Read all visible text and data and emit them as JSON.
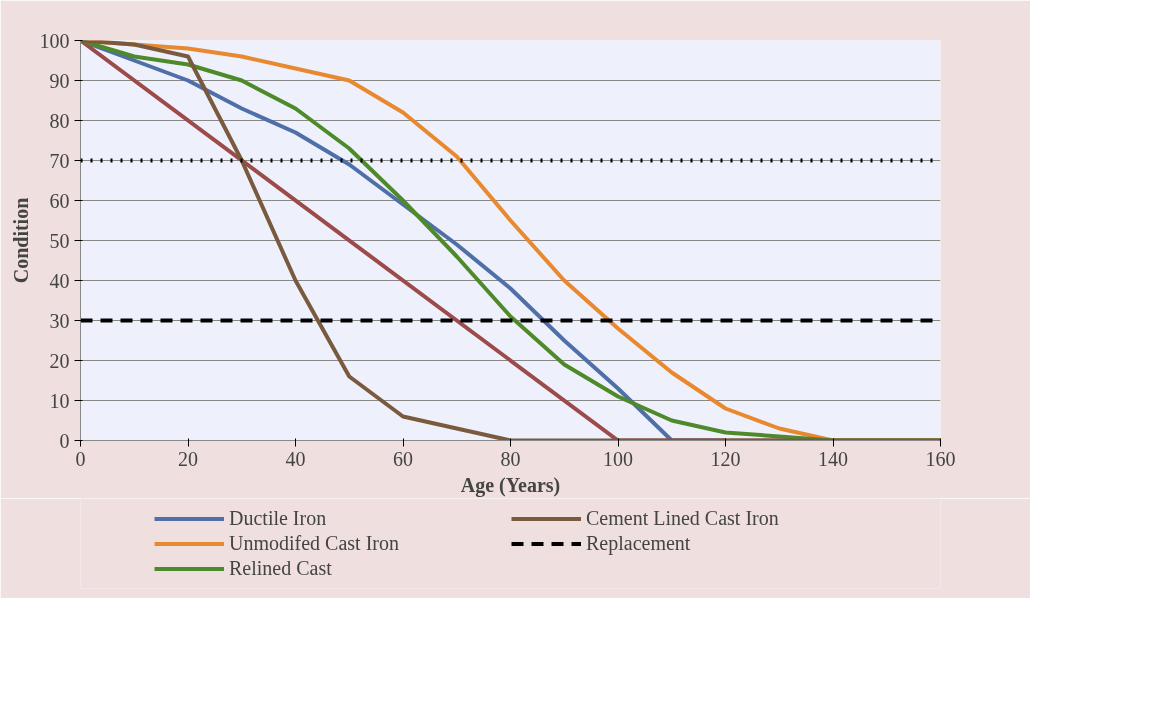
{
  "chart_data": {
    "type": "line",
    "xlabel": "Age (Years)",
    "ylabel": "Condition",
    "xlim": [
      0,
      160
    ],
    "xticks": [
      0,
      20,
      40,
      60,
      80,
      100,
      120,
      140,
      160
    ],
    "ylim": [
      0,
      100
    ],
    "yticks": [
      0,
      10,
      20,
      30,
      40,
      50,
      60,
      70,
      80,
      90,
      100
    ],
    "grid": "y",
    "legend": "bottom",
    "series": [
      {
        "name": "Ductile Iron",
        "color": "#4f6fa8",
        "x": [
          0,
          10,
          20,
          30,
          40,
          50,
          60,
          70,
          80,
          90,
          100,
          110,
          120
        ],
        "values": [
          100,
          95,
          90,
          83,
          77,
          69,
          59,
          49,
          38,
          25,
          13,
          0,
          0
        ]
      },
      {
        "color": "#9c4a4a",
        "x": [
          0,
          100,
          160
        ],
        "values": [
          100,
          0,
          0
        ]
      },
      {
        "name": "Unmodifed Cast Iron",
        "color": "#e8892f",
        "x": [
          0,
          10,
          20,
          30,
          40,
          50,
          60,
          70,
          80,
          90,
          100,
          110,
          120,
          130,
          140,
          150,
          160
        ],
        "values": [
          100,
          99,
          98,
          96,
          93,
          90,
          82,
          71,
          55,
          40,
          28,
          17,
          8,
          3,
          0,
          0,
          0
        ]
      },
      {
        "name": "Relined Cast",
        "color": "#4f8a2a",
        "x": [
          0,
          10,
          20,
          30,
          40,
          50,
          60,
          70,
          80,
          90,
          100,
          110,
          120,
          130,
          140,
          150,
          160
        ],
        "values": [
          100,
          96,
          94,
          90,
          83,
          73,
          60,
          46,
          31,
          19,
          11,
          5,
          2,
          1,
          0,
          0,
          0
        ]
      },
      {
        "name": "Cement Lined Cast Iron",
        "color": "#7a5a3e",
        "x": [
          0,
          10,
          20,
          30,
          40,
          50,
          60,
          70,
          80,
          90,
          100,
          110,
          120,
          130,
          140,
          150,
          160
        ],
        "values": [
          100,
          99,
          96,
          70,
          40,
          16,
          6,
          3,
          0,
          0,
          0,
          0,
          0,
          0,
          0,
          0,
          0
        ]
      },
      {
        "name": "Replacement",
        "color": "#000000",
        "line_style": "dashed",
        "x": [
          0,
          160
        ],
        "values": [
          30,
          30
        ]
      }
    ],
    "ref_lines": [
      {
        "axis": "y",
        "value": 70,
        "color": "#000000",
        "line_style": "dotted"
      }
    ]
  }
}
